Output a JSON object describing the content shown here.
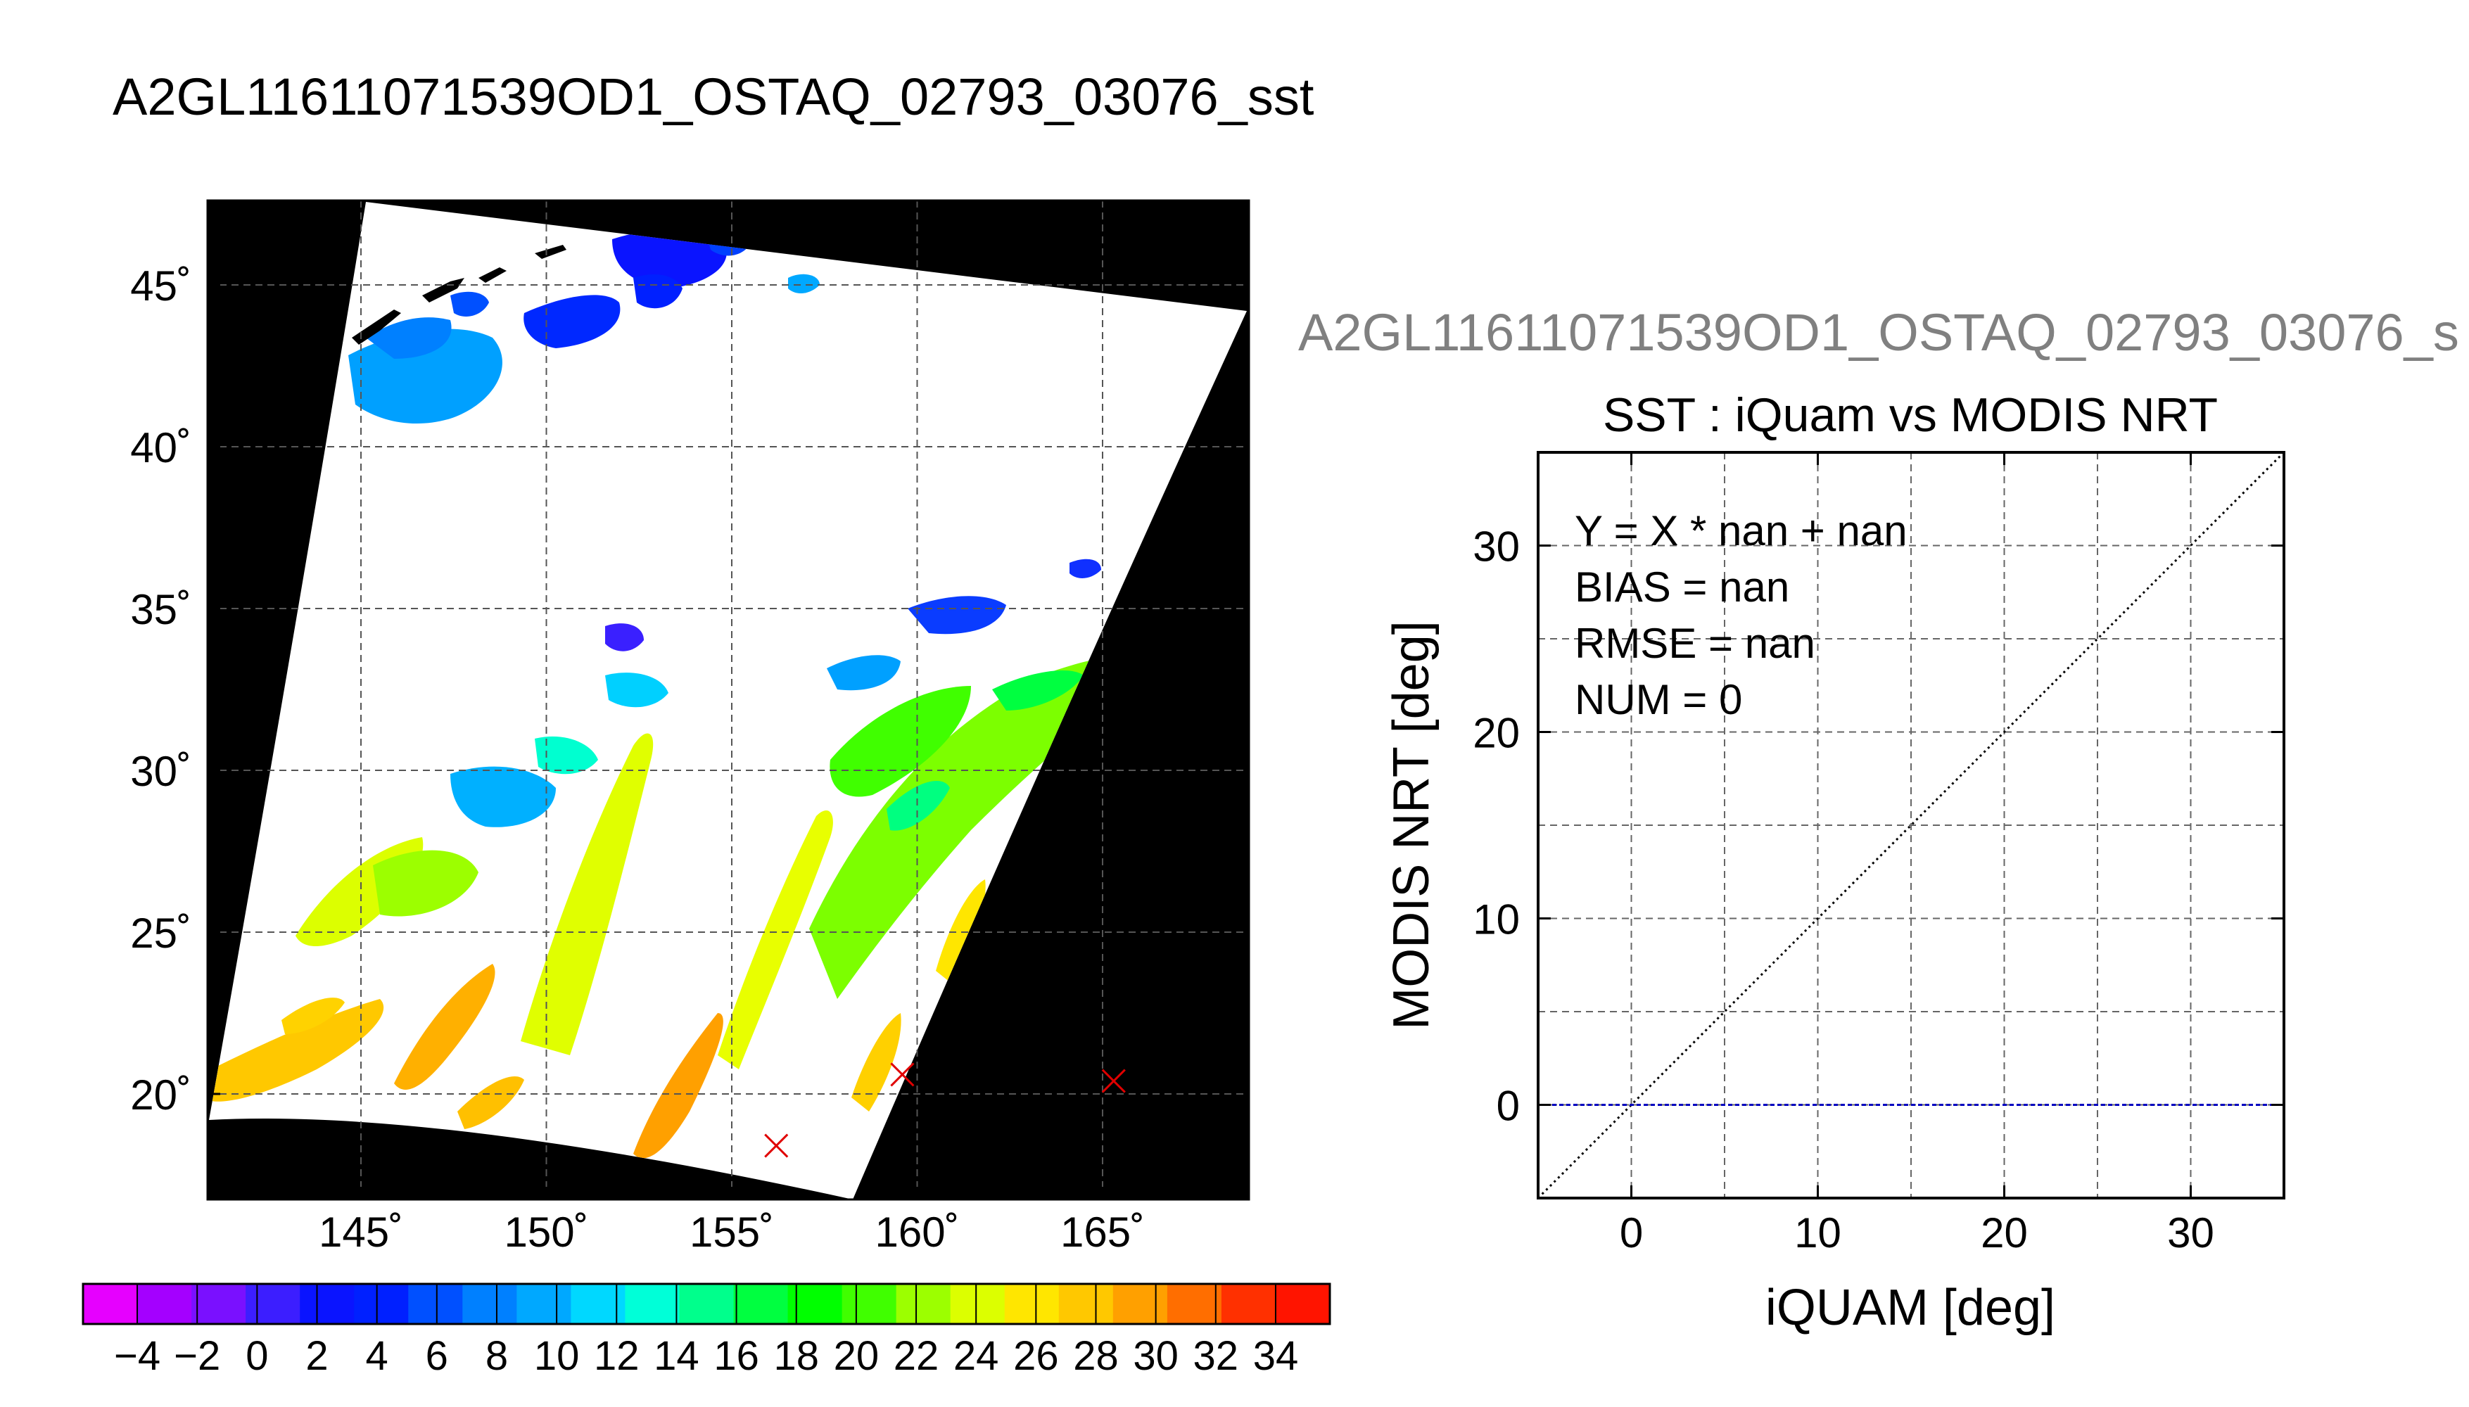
{
  "title": "A2GL11611071539OD1_OSTAQ_02793_03076_sst",
  "map": {
    "lat_tick_labels": [
      "45˚",
      "40˚",
      "35˚",
      "30˚",
      "25˚",
      "20˚"
    ],
    "lon_tick_labels": [
      "145˚",
      "150˚",
      "155˚",
      "160˚",
      "165˚"
    ],
    "markers": [
      {
        "lon": 156.2,
        "lat": 18.4
      },
      {
        "lon": 159.6,
        "lat": 20.6
      },
      {
        "lon": 165.3,
        "lat": 20.4
      }
    ],
    "marker_color": "#e00000",
    "background_color": "#000000"
  },
  "colorbar": {
    "tick_labels": [
      "−4",
      "−2",
      "0",
      "2",
      "4",
      "6",
      "8",
      "10",
      "12",
      "14",
      "16",
      "18",
      "20",
      "22",
      "24",
      "26",
      "28",
      "30",
      "32",
      "34"
    ],
    "colors": [
      "#e600ff",
      "#a400ff",
      "#7a10ff",
      "#3c1eff",
      "#0a14ff",
      "#0020ff",
      "#0050ff",
      "#0080ff",
      "#00a8ff",
      "#00d8ff",
      "#00ffd8",
      "#00ff8c",
      "#00ff40",
      "#00ff00",
      "#40ff00",
      "#9cff00",
      "#dcff00",
      "#ffe600",
      "#ffc800",
      "#ffa000",
      "#ff6e00",
      "#ff3000",
      "#ff1400"
    ]
  },
  "scatter": {
    "file_title": "A2GL11611071539OD1_OSTAQ_02793_03076_s",
    "title": "SST : iQuam vs MODIS NRT",
    "stats": [
      "Y = X * nan + nan",
      "BIAS = nan",
      "RMSE = nan",
      "NUM = 0"
    ]
  },
  "chart_data": {
    "type": "scatter",
    "title": "SST : iQuam vs MODIS NRT",
    "xlabel": "iQUAM [deg]",
    "ylabel": "MODIS NRT [deg]",
    "xlim": [
      -5,
      35
    ],
    "ylim": [
      -5,
      35
    ],
    "x_ticks": [
      0,
      10,
      20,
      30
    ],
    "y_ticks": [
      0,
      10,
      20,
      30
    ],
    "grid": true,
    "series": [],
    "reference_lines": [
      {
        "kind": "identity",
        "style": "dotted",
        "color": "#000000"
      },
      {
        "kind": "horizontal",
        "y": 0,
        "style": "dashed",
        "color": "#0000c0"
      }
    ]
  }
}
